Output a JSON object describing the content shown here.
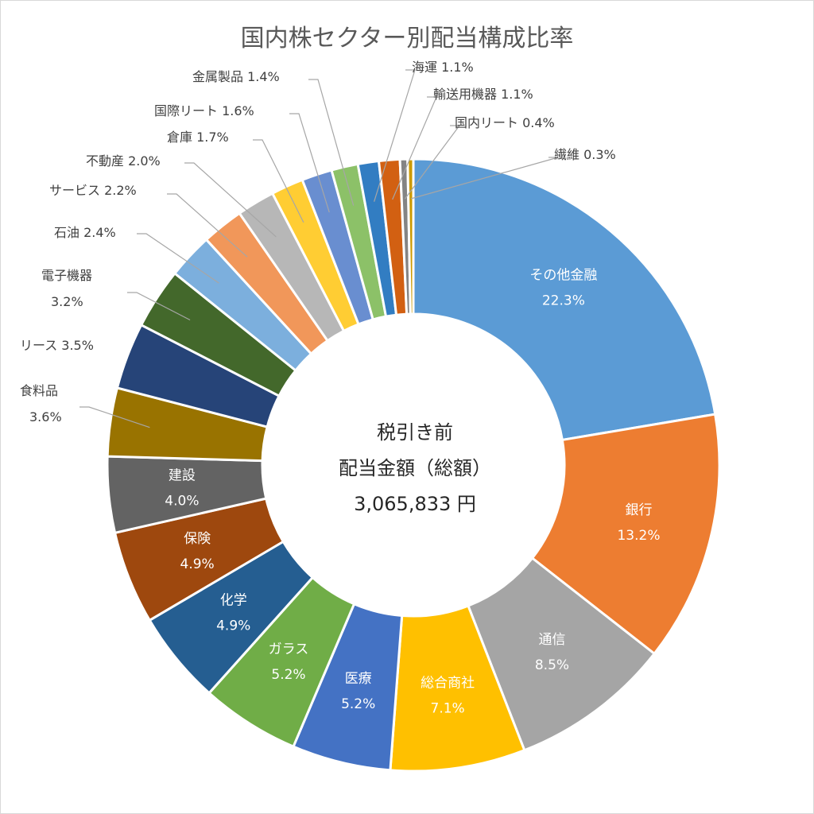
{
  "chart_data": {
    "type": "pie",
    "style": "donut",
    "title": "国内株セクター別配当構成比率",
    "center_text": [
      "税引き前",
      "配当金額（総額）",
      "3,065,833 円"
    ],
    "unit": "%",
    "slices": [
      {
        "label": "その他金融",
        "value": 22.3,
        "value_label": "22.3%",
        "color": "#5B9BD5",
        "placement": "inside"
      },
      {
        "label": "銀行",
        "value": 13.2,
        "value_label": "13.2%",
        "color": "#ED7D31",
        "placement": "inside"
      },
      {
        "label": "通信",
        "value": 8.5,
        "value_label": "8.5%",
        "color": "#A5A5A5",
        "placement": "inside"
      },
      {
        "label": "総合商社",
        "value": 7.1,
        "value_label": "7.1%",
        "color": "#FFC000",
        "placement": "inside"
      },
      {
        "label": "医療",
        "value": 5.2,
        "value_label": "5.2%",
        "color": "#4472C4",
        "placement": "inside"
      },
      {
        "label": "ガラス",
        "value": 5.2,
        "value_label": "5.2%",
        "color": "#70AD47",
        "placement": "inside"
      },
      {
        "label": "化学",
        "value": 4.9,
        "value_label": "4.9%",
        "color": "#255E91",
        "placement": "inside"
      },
      {
        "label": "保険",
        "value": 4.9,
        "value_label": "4.9%",
        "color": "#9E480E",
        "placement": "inside"
      },
      {
        "label": "建設",
        "value": 4.0,
        "value_label": "4.0%",
        "color": "#636363",
        "placement": "inside"
      },
      {
        "label": "食料品",
        "value": 3.6,
        "value_label": "3.6%",
        "color": "#997300",
        "placement": "outside"
      },
      {
        "label": "リース",
        "value": 3.5,
        "value_label": "3.5%",
        "color": "#264478",
        "placement": "outside"
      },
      {
        "label": "電子機器",
        "value": 3.2,
        "value_label": "3.2%",
        "color": "#43682B",
        "placement": "outside"
      },
      {
        "label": "石油",
        "value": 2.4,
        "value_label": "2.4%",
        "color": "#7CAFDD",
        "placement": "outside"
      },
      {
        "label": "サービス",
        "value": 2.2,
        "value_label": "2.2%",
        "color": "#F1975A",
        "placement": "outside"
      },
      {
        "label": "不動産",
        "value": 2.0,
        "value_label": "2.0%",
        "color": "#B7B7B7",
        "placement": "outside"
      },
      {
        "label": "倉庫",
        "value": 1.7,
        "value_label": "1.7%",
        "color": "#FFCD33",
        "placement": "outside"
      },
      {
        "label": "国際リート",
        "value": 1.6,
        "value_label": "1.6%",
        "color": "#698ED0",
        "placement": "outside"
      },
      {
        "label": "金属製品",
        "value": 1.4,
        "value_label": "1.4%",
        "color": "#8CC168",
        "placement": "outside"
      },
      {
        "label": "海運",
        "value": 1.1,
        "value_label": "1.1%",
        "color": "#327DC2",
        "placement": "outside"
      },
      {
        "label": "輸送用機器",
        "value": 1.1,
        "value_label": "1.1%",
        "color": "#D26012",
        "placement": "outside"
      },
      {
        "label": "国内リート",
        "value": 0.4,
        "value_label": "0.4%",
        "color": "#848484",
        "placement": "outside"
      },
      {
        "label": "繊維",
        "value": 0.3,
        "value_label": "0.3%",
        "color": "#CC9A00",
        "placement": "outside"
      }
    ]
  }
}
